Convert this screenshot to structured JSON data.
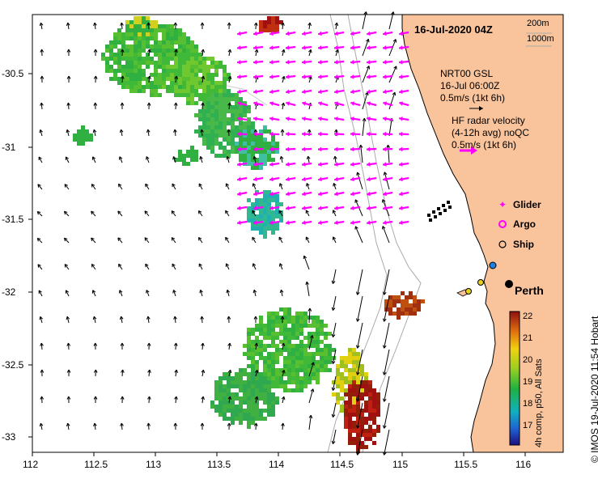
{
  "map": {
    "timestamp": "16-Jul-2020 04Z",
    "depth_200": "200m",
    "depth_1000": "1000m",
    "gsl_line1": "NRT00 GSL",
    "gsl_line2": "16-Jul 06:00Z",
    "gsl_scale": "0.5m/s (1kt 6h)",
    "hf_line1": "HF radar velocity",
    "hf_line2": "(4-12h avg) noQC",
    "hf_scale": "0.5m/s (1kt 6h)",
    "legend": {
      "glider": "Glider",
      "argo": "Argo",
      "ship": "Ship"
    },
    "city": "Perth",
    "credit": "© IMOS 19-Jul-2020 11:54 Hobart",
    "colorbar_label": "4h comp, p50, All Sats",
    "colorbar_ticks": [
      "22",
      "21",
      "20",
      "19",
      "18",
      "17"
    ],
    "lon_ticks": [
      "112",
      "112.5",
      "113",
      "113.5",
      "114",
      "114.5",
      "115",
      "115.5",
      "116"
    ],
    "lat_ticks": [
      "-30.5",
      "-31",
      "-31.5",
      "-32",
      "-32.5",
      "-33"
    ],
    "colors": {
      "land": "#f9c49c",
      "hf_arrows": "#ff00ff",
      "gsl_arrows": "#000000"
    }
  }
}
